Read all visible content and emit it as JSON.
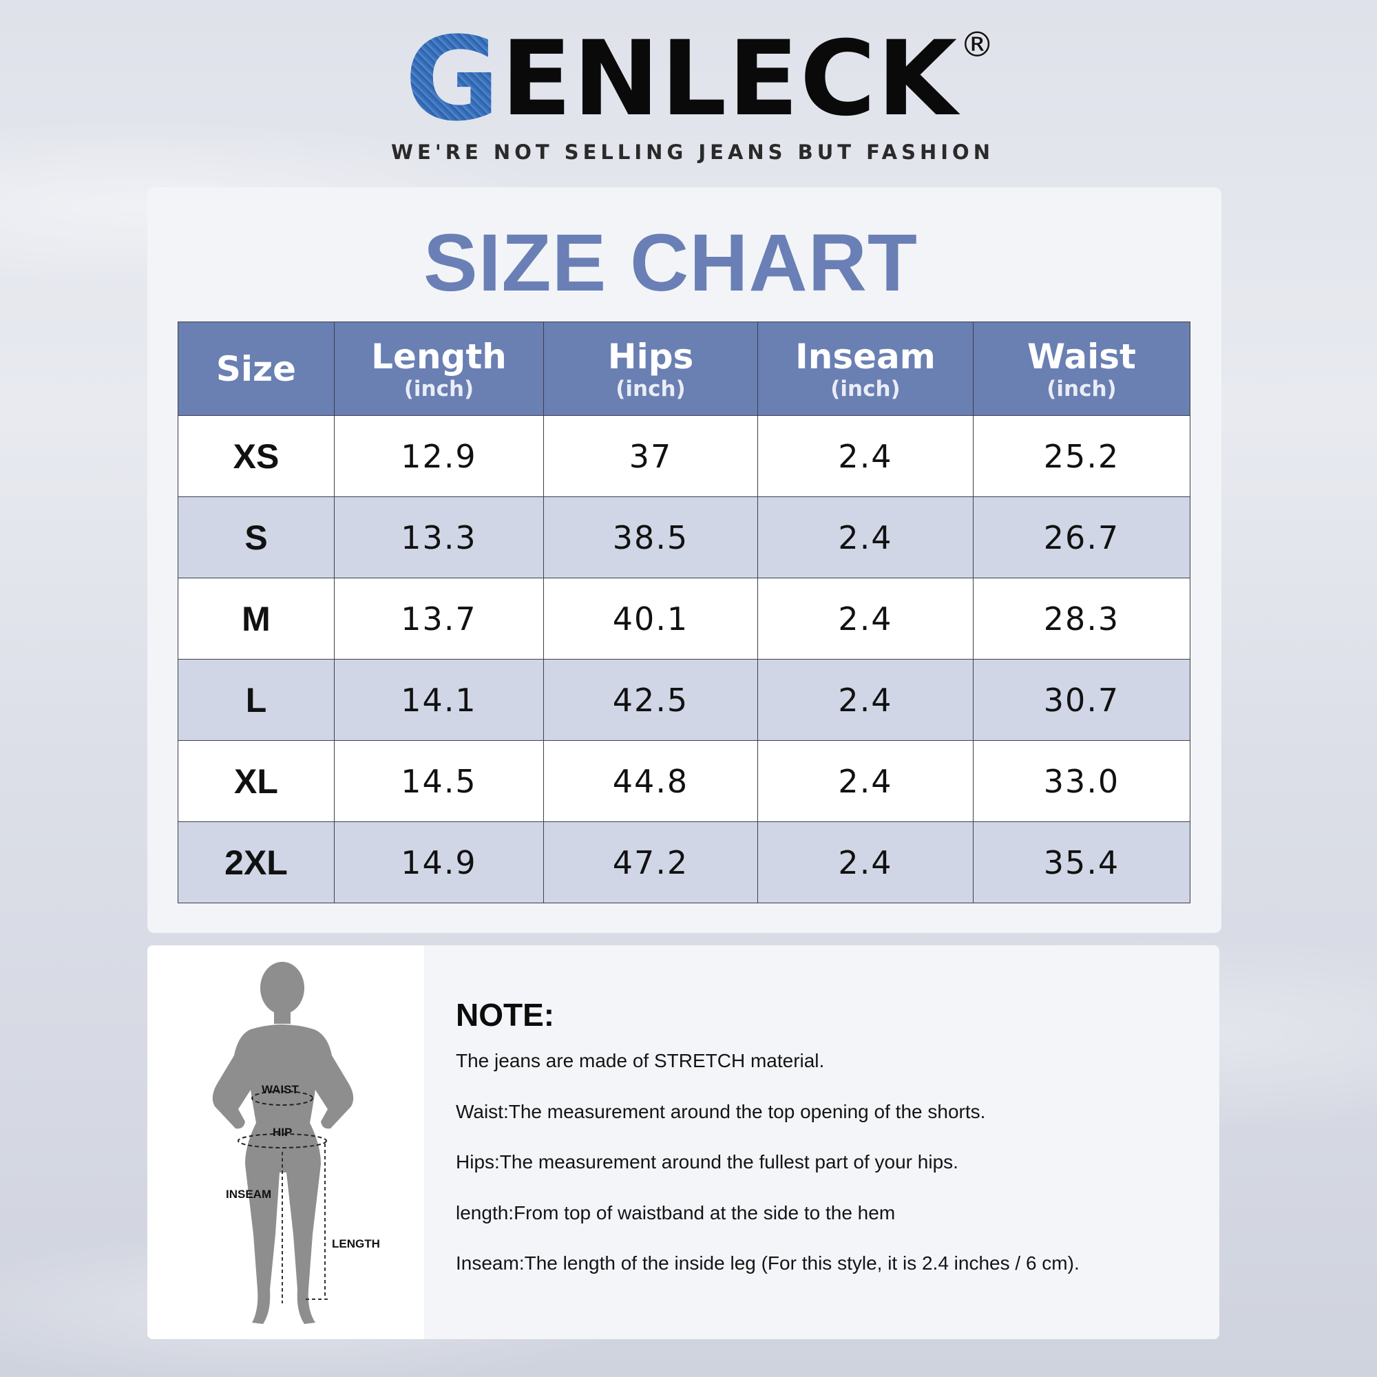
{
  "brand": {
    "logo_first_letter": "G",
    "logo_rest": "ENLECK",
    "registered_mark": "®",
    "tagline": "WE'RE NOT SELLING JEANS BUT FASHION"
  },
  "size_chart": {
    "title": "SIZE CHART",
    "columns": [
      {
        "label": "Size",
        "unit": ""
      },
      {
        "label": "Length",
        "unit": "(inch)"
      },
      {
        "label": "Hips",
        "unit": "(inch)"
      },
      {
        "label": "Inseam",
        "unit": "(inch)"
      },
      {
        "label": "Waist",
        "unit": "(inch)"
      }
    ],
    "rows": [
      [
        "XS",
        "12.9",
        "37",
        "2.4",
        "25.2"
      ],
      [
        "S",
        "13.3",
        "38.5",
        "2.4",
        "26.7"
      ],
      [
        "M",
        "13.7",
        "40.1",
        "2.4",
        "28.3"
      ],
      [
        "L",
        "14.1",
        "42.5",
        "2.4",
        "30.7"
      ],
      [
        "XL",
        "14.5",
        "44.8",
        "2.4",
        "33.0"
      ],
      [
        "2XL",
        "14.9",
        "47.2",
        "2.4",
        "35.4"
      ]
    ]
  },
  "figure": {
    "labels": {
      "waist": "WAIST",
      "hip": "HIP",
      "inseam": "INSEAM",
      "length": "LENGTH"
    }
  },
  "note": {
    "title": "NOTE:",
    "lines": [
      "The jeans are made of STRETCH material.",
      "Waist:The measurement around the top opening of the shorts.",
      "Hips:The measurement around the fullest part of your hips.",
      "length:From top of waistband at the side to the hem",
      "Inseam:The length of the inside leg (For this style, it is 2.4 inches / 6 cm)."
    ]
  },
  "colors": {
    "header_blue": "#6a7fb2",
    "title_blue": "#6a7fb5",
    "stripe_blue": "#d0d6e6",
    "denim_blue": "#3a6fb6"
  }
}
